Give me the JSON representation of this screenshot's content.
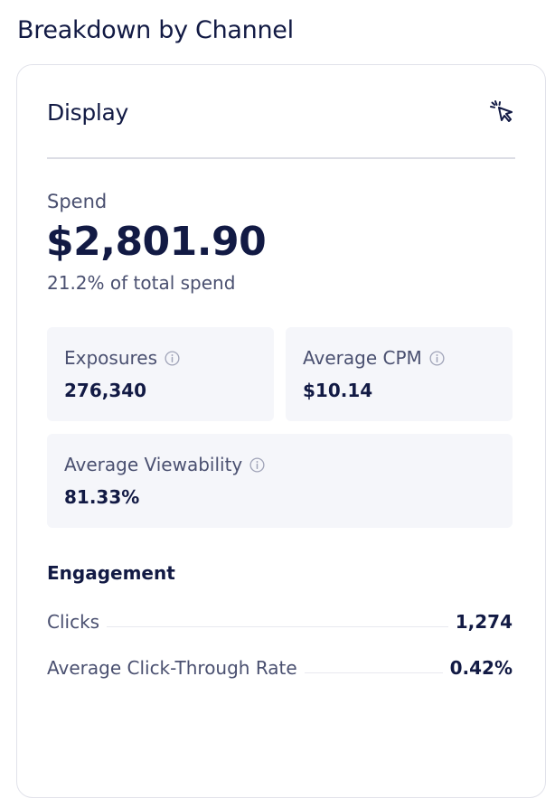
{
  "page": {
    "title": "Breakdown by Channel"
  },
  "card": {
    "channel": "Display",
    "spend": {
      "label": "Spend",
      "value": "$2,801.90",
      "share": "21.2% of total spend"
    },
    "metrics": [
      {
        "label": "Exposures",
        "value": "276,340",
        "icon": "info-icon"
      },
      {
        "label": "Average CPM",
        "value": "$10.14",
        "icon": "info-icon"
      },
      {
        "label": "Average Viewability",
        "value": "81.33%",
        "icon": "info-icon"
      }
    ],
    "engagement": {
      "title": "Engagement",
      "rows": [
        {
          "label": "Clicks",
          "value": "1,274"
        },
        {
          "label": "Average Click-Through Rate",
          "value": "0.42%"
        }
      ]
    },
    "action_icon": "pointer-click-icon"
  },
  "colors": {
    "text_primary": "#121a44",
    "text_secondary": "#4a5070",
    "tile_background": "#f5f6fa",
    "border": "#e1e2ea"
  }
}
